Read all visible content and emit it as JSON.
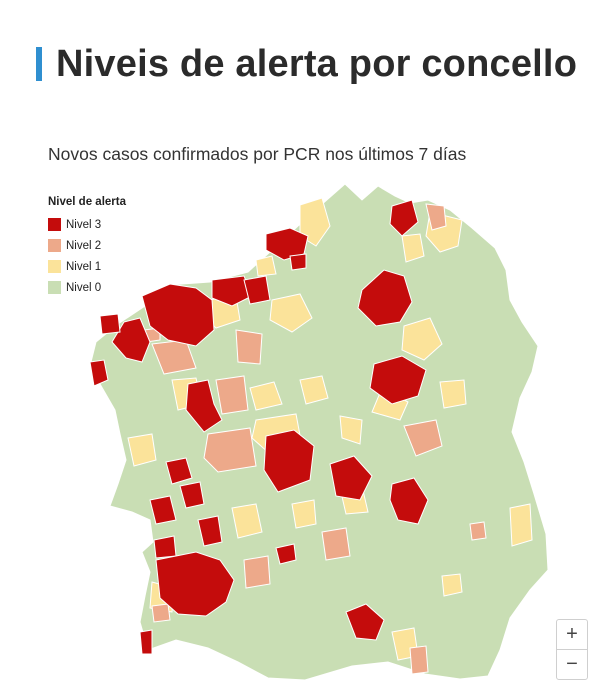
{
  "header": {
    "title": "Niveis de alerta por concello"
  },
  "map": {
    "subtitle": "Novos casos confirmados por PCR nos últimos 7 días"
  },
  "legend": {
    "title": "Nivel de alerta",
    "items": [
      {
        "label": "Nivel 3",
        "color": "#c40c0c"
      },
      {
        "label": "Nivel 2",
        "color": "#eda98a"
      },
      {
        "label": "Nivel 1",
        "color": "#fbe39a"
      },
      {
        "label": "Nivel 0",
        "color": "#c9deb4"
      }
    ]
  },
  "zoom": {
    "in_label": "+",
    "out_label": "−"
  }
}
